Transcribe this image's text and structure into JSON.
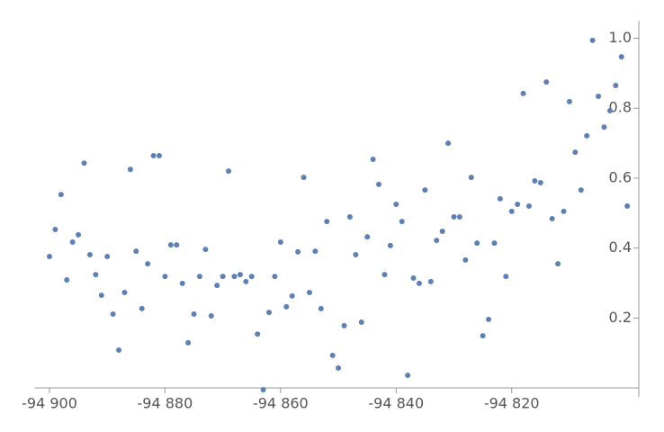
{
  "chart_data": {
    "type": "scatter",
    "color": "#5e81b5",
    "x": [
      -94900,
      -94899,
      -94898,
      -94897,
      -94896,
      -94895,
      -94894,
      -94893,
      -94892,
      -94891,
      -94890,
      -94889,
      -94888,
      -94887,
      -94886,
      -94885,
      -94884,
      -94883,
      -94882,
      -94881,
      -94880,
      -94879,
      -94878,
      -94877,
      -94876,
      -94875,
      -94874,
      -94873,
      -94872,
      -94871,
      -94870,
      -94869,
      -94868,
      -94867,
      -94866,
      -94865,
      -94864,
      -94863,
      -94862,
      -94861,
      -94860,
      -94859,
      -94858,
      -94857,
      -94856,
      -94855,
      -94854,
      -94853,
      -94852,
      -94851,
      -94850,
      -94849,
      -94848,
      -94847,
      -94846,
      -94845,
      -94844,
      -94843,
      -94842,
      -94841,
      -94840,
      -94839,
      -94838,
      -94837,
      -94836,
      -94835,
      -94834,
      -94833,
      -94832,
      -94831,
      -94830,
      -94829,
      -94828,
      -94827,
      -94826,
      -94825,
      -94824,
      -94823,
      -94822,
      -94821,
      -94820,
      -94819,
      -94818,
      -94817,
      -94816,
      -94815,
      -94814,
      -94813,
      -94812,
      -94811,
      -94810,
      -94809,
      -94808,
      -94807,
      -94806,
      -94805,
      -94804,
      -94803,
      -94802,
      -94801,
      -94800
    ],
    "values": [
      0.376,
      0.453,
      0.553,
      0.309,
      0.417,
      0.438,
      0.643,
      0.381,
      0.324,
      0.265,
      0.376,
      0.211,
      0.108,
      0.273,
      0.625,
      0.391,
      0.227,
      0.355,
      0.664,
      0.664,
      0.319,
      0.409,
      0.409,
      0.299,
      0.129,
      0.211,
      0.319,
      0.396,
      0.206,
      0.293,
      0.319,
      0.62,
      0.319,
      0.324,
      0.304,
      0.319,
      0.154,
      -0.005,
      0.216,
      0.319,
      0.417,
      0.232,
      0.263,
      0.389,
      0.602,
      0.273,
      0.391,
      0.227,
      0.476,
      0.093,
      0.057,
      0.178,
      0.489,
      0.381,
      0.188,
      0.432,
      0.654,
      0.582,
      0.324,
      0.407,
      0.525,
      0.476,
      0.036,
      0.314,
      0.299,
      0.566,
      0.304,
      0.422,
      0.448,
      0.7,
      0.489,
      0.489,
      0.366,
      0.602,
      0.414,
      0.149,
      0.196,
      0.414,
      0.541,
      0.319,
      0.505,
      0.525,
      0.842,
      0.52,
      0.592,
      0.587,
      0.875,
      0.484,
      0.355,
      0.505,
      0.819,
      0.674,
      0.566,
      0.721,
      0.994,
      0.834,
      0.746,
      0.793,
      0.865,
      0.947,
      0.52
    ],
    "xlim": [
      -94902.6,
      -94798
    ],
    "ylim": [
      -0.01,
      1.05
    ],
    "xticks": [
      {
        "value": -94900,
        "label": "-94 900"
      },
      {
        "value": -94880,
        "label": "-94 880"
      },
      {
        "value": -94860,
        "label": "-94 860"
      },
      {
        "value": -94840,
        "label": "-94 840"
      },
      {
        "value": -94820,
        "label": "-94 820"
      }
    ],
    "yticks": [
      0.2,
      0.4,
      0.6,
      0.8,
      {
        "value": 1,
        "label": "1.0"
      }
    ]
  }
}
